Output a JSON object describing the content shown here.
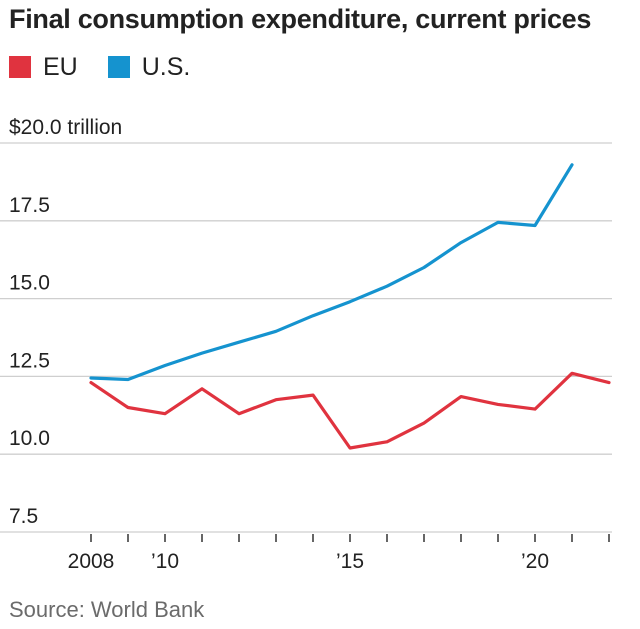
{
  "chart_data": {
    "type": "line",
    "title": "Final consumption expenditure, current  prices",
    "source": "Source: World Bank",
    "y_unit_label": "$20.0 trillion",
    "ylim": [
      7.5,
      20.0
    ],
    "y_ticks": [
      {
        "value": 20.0,
        "label": "$20.0 trillion"
      },
      {
        "value": 17.5,
        "label": "17.5"
      },
      {
        "value": 15.0,
        "label": "15.0"
      },
      {
        "value": 12.5,
        "label": "12.5"
      },
      {
        "value": 10.0,
        "label": "10.0"
      },
      {
        "value": 7.5,
        "label": "7.5"
      }
    ],
    "x": [
      2008,
      2009,
      2010,
      2011,
      2012,
      2013,
      2014,
      2015,
      2016,
      2017,
      2018,
      2019,
      2020,
      2021,
      2022
    ],
    "xlim": [
      2008,
      2022
    ],
    "x_ticks": [
      {
        "value": 2008,
        "label": "2008"
      },
      {
        "value": 2010,
        "label": "’10"
      },
      {
        "value": 2015,
        "label": "’15"
      },
      {
        "value": 2020,
        "label": "’20"
      }
    ],
    "series": [
      {
        "name": "EU",
        "color": "#e0333f",
        "values": [
          12.3,
          11.5,
          11.3,
          12.1,
          11.3,
          11.75,
          11.9,
          10.2,
          10.4,
          11.0,
          11.85,
          11.6,
          11.45,
          12.6,
          12.3
        ]
      },
      {
        "name": "U.S.",
        "color": "#1593cf",
        "values": [
          12.45,
          12.4,
          12.85,
          13.25,
          13.6,
          13.95,
          14.45,
          14.9,
          15.4,
          16.0,
          16.8,
          17.45,
          17.35,
          19.3,
          null
        ]
      }
    ]
  }
}
